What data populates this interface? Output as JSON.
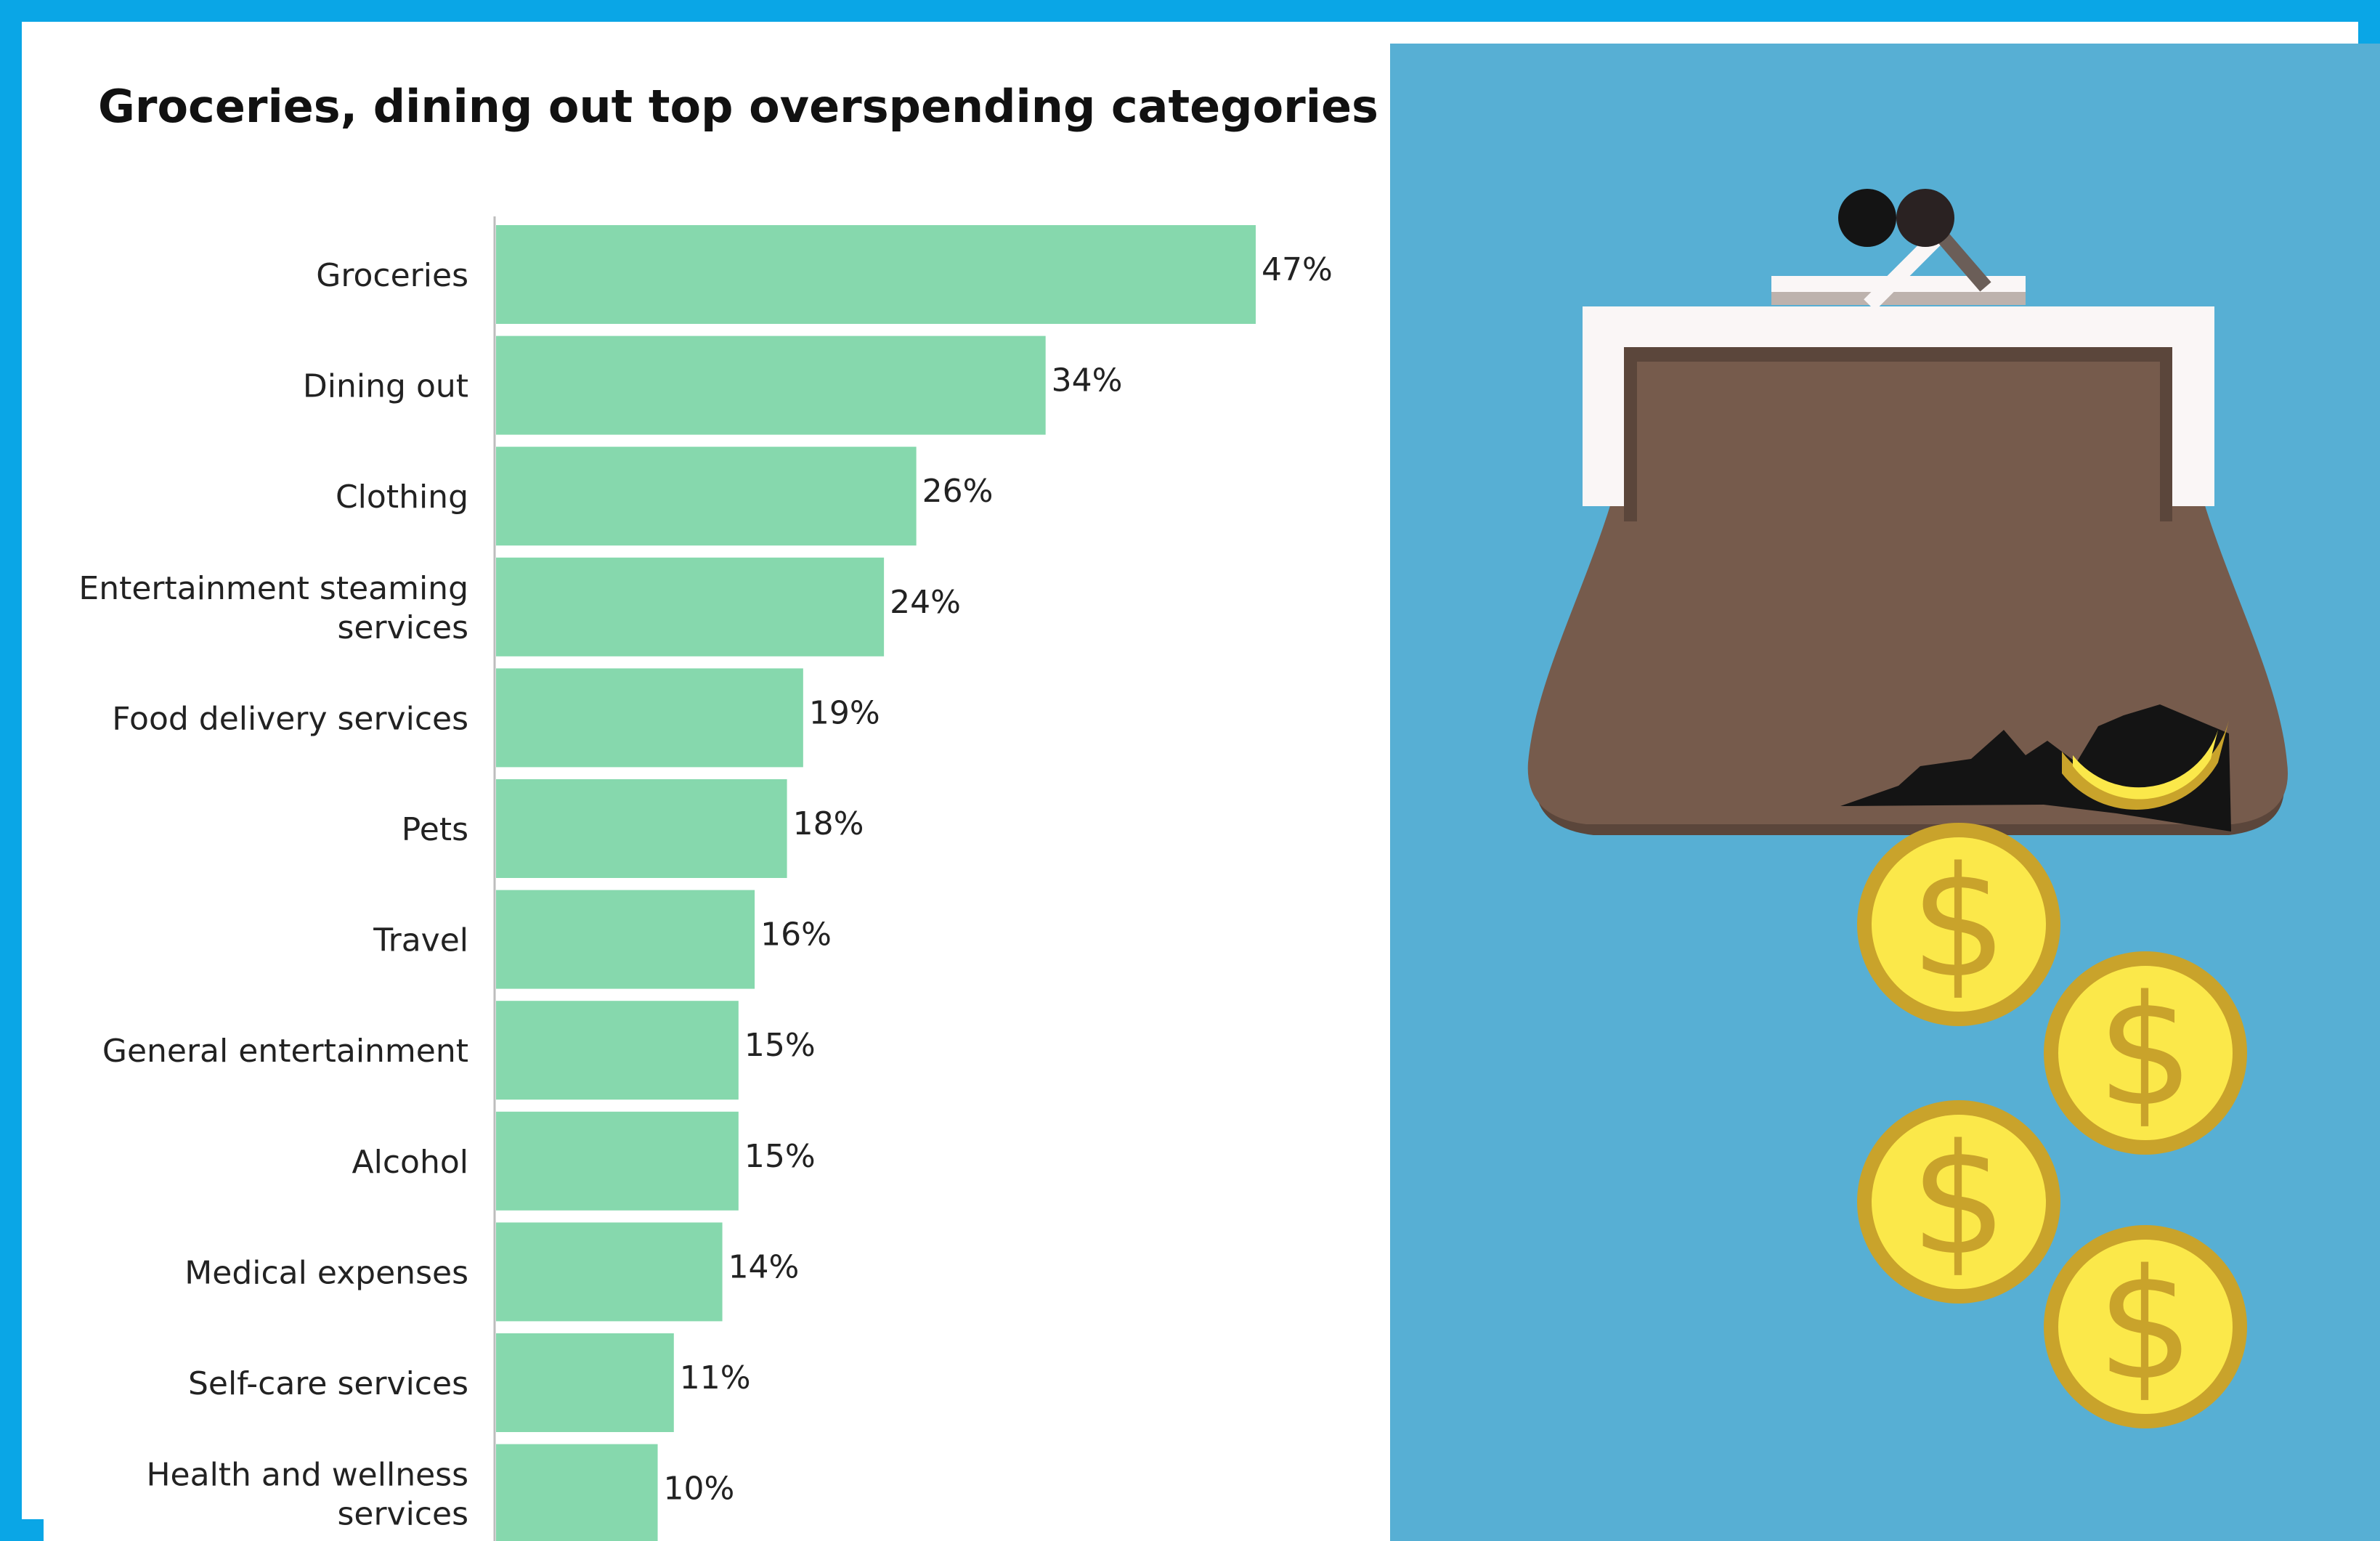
{
  "chart_data": {
    "type": "bar",
    "orientation": "horizontal",
    "title": "Groceries, dining out top overspending categories",
    "categories": [
      "Groceries",
      "Dining out",
      "Clothing",
      "Entertainment steaming services",
      "Food delivery services",
      "Pets",
      "Travel",
      "General entertainment",
      "Alcohol",
      "Medical expenses",
      "Self-care services",
      "Health and wellness services"
    ],
    "values": [
      47,
      34,
      26,
      24,
      19,
      18,
      16,
      15,
      15,
      14,
      11,
      10
    ],
    "value_labels": [
      "47%",
      "34%",
      "26%",
      "24%",
      "19%",
      "18%",
      "16%",
      "15%",
      "15%",
      "14%",
      "11%",
      "10%"
    ],
    "unit": "%",
    "xlim": [
      0,
      50
    ],
    "grid": false,
    "legend": "none",
    "bar_color": "#86d8ad"
  },
  "colors": {
    "frame": "#0aa6e6",
    "illustration_background": "#57afd4",
    "purse_body": "#765b4c",
    "purse_shadow": "#5b463b",
    "purse_frame": "#faf6f6",
    "coin_fill": "#fbe84a",
    "coin_rim": "#c9a32b"
  },
  "illustration": {
    "subject": "purse-with-falling-coins",
    "icons": [
      "purse-icon",
      "coin-icon"
    ]
  }
}
